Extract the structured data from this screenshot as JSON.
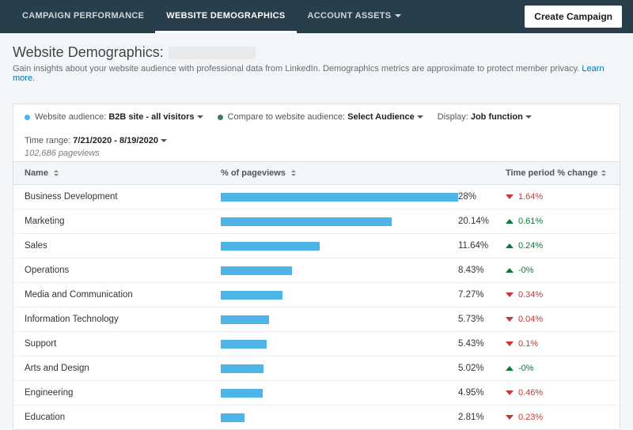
{
  "colors": {
    "nav_bg": "#283e4a",
    "bar_color": "#4cb4e7",
    "compare_dot": "#3f7e62",
    "up": "#0a7b3e",
    "down": "#c93636",
    "link": "#0073b1"
  },
  "nav": {
    "tabs": [
      {
        "label": "CAMPAIGN PERFORMANCE"
      },
      {
        "label": "WEBSITE DEMOGRAPHICS"
      },
      {
        "label": "ACCOUNT ASSETS"
      }
    ],
    "create_button": "Create Campaign"
  },
  "header": {
    "title": "Website Demographics:",
    "subtitle_prefix": "Gain insights about your website audience with professional data from LinkedIn. Demographics metrics are approximate to protect member privacy. ",
    "learn_more": "Learn more."
  },
  "filters": {
    "audience_label": "Website audience:",
    "audience_value": "B2B site - all visitors",
    "compare_label": "Compare to website audience:",
    "compare_value": "Select Audience",
    "display_label": "Display:",
    "display_value": "Job function",
    "time_label": "Time range:",
    "time_value": "7/21/2020 - 8/19/2020",
    "pageviews": "102,686 pageviews"
  },
  "table": {
    "columns": {
      "name": "Name",
      "pct": "% of pageviews",
      "change": "Time period % change"
    },
    "max_pct": 28,
    "rows": [
      {
        "name": "Business Development",
        "pct": 28,
        "pct_label": "28%",
        "dir": "down",
        "change": "1.64%"
      },
      {
        "name": "Marketing",
        "pct": 20.14,
        "pct_label": "20.14%",
        "dir": "up",
        "change": "0.61%"
      },
      {
        "name": "Sales",
        "pct": 11.64,
        "pct_label": "11.64%",
        "dir": "up",
        "change": "0.24%"
      },
      {
        "name": "Operations",
        "pct": 8.43,
        "pct_label": "8.43%",
        "dir": "up",
        "change": "-0%"
      },
      {
        "name": "Media and Communication",
        "pct": 7.27,
        "pct_label": "7.27%",
        "dir": "down",
        "change": "0.34%"
      },
      {
        "name": "Information Technology",
        "pct": 5.73,
        "pct_label": "5.73%",
        "dir": "down",
        "change": "0.04%"
      },
      {
        "name": "Support",
        "pct": 5.43,
        "pct_label": "5.43%",
        "dir": "down",
        "change": "0.1%"
      },
      {
        "name": "Arts and Design",
        "pct": 5.02,
        "pct_label": "5.02%",
        "dir": "up",
        "change": "-0%"
      },
      {
        "name": "Engineering",
        "pct": 4.95,
        "pct_label": "4.95%",
        "dir": "down",
        "change": "0.46%"
      },
      {
        "name": "Education",
        "pct": 2.81,
        "pct_label": "2.81%",
        "dir": "down",
        "change": "0.23%"
      }
    ]
  }
}
